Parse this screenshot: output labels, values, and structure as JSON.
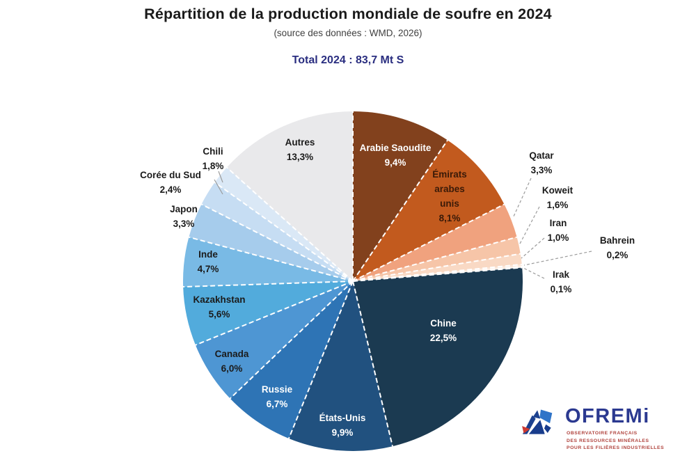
{
  "title": "Répartition de la production mondiale de soufre en 2024",
  "subtitle": "(source des données : WMD, 2026)",
  "total_label": "Total 2024 : 83,7 Mt S",
  "colors": {
    "title_text": "#1a1a1a",
    "subtitle_text": "#3f3f3f",
    "total_text": "#2a2e80",
    "slice_divider": "#ffffff",
    "leader_line": "#9b9b9b",
    "dark_label_text": "#1b1b1b",
    "light_label_text": "#ffffff"
  },
  "chart_data": {
    "type": "pie",
    "title": "Répartition de la production mondiale de soufre en 2024",
    "subtitle": "(source des données : WMD, 2026)",
    "total": "Total 2024 : 83,7 Mt S",
    "unit": "%",
    "start_angle_deg": 90,
    "direction": "clockwise",
    "legend": "none",
    "slices": [
      {
        "label": "Arabie Saoudite",
        "value": 9.4,
        "display": "9,4%",
        "color": "#82411d",
        "text_color": "#ffffff"
      },
      {
        "label": "Émirats arabes unis",
        "value": 8.1,
        "display": "8,1%",
        "color": "#c25a1e",
        "text_color": "#3a1a08"
      },
      {
        "label": "Qatar",
        "value": 3.3,
        "display": "3,3%",
        "color": "#f0a27e",
        "text_color": "#1b1b1b"
      },
      {
        "label": "Koweit",
        "value": 1.6,
        "display": "1,6%",
        "color": "#f6c5a8",
        "text_color": "#1b1b1b"
      },
      {
        "label": "Iran",
        "value": 1.0,
        "display": "1,0%",
        "color": "#f9d9c4",
        "text_color": "#1b1b1b"
      },
      {
        "label": "Bahrein",
        "value": 0.2,
        "display": "0,2%",
        "color": "#fbe8db",
        "text_color": "#1b1b1b"
      },
      {
        "label": "Irak",
        "value": 0.1,
        "display": "0,1%",
        "color": "#fdf3ec",
        "text_color": "#1b1b1b"
      },
      {
        "label": "Chine",
        "value": 22.5,
        "display": "22,5%",
        "color": "#1b3a51",
        "text_color": "#ffffff"
      },
      {
        "label": "États-Unis",
        "value": 9.9,
        "display": "9,9%",
        "color": "#21517f",
        "text_color": "#ffffff"
      },
      {
        "label": "Russie",
        "value": 6.7,
        "display": "6,7%",
        "color": "#2e74b5",
        "text_color": "#ffffff"
      },
      {
        "label": "Canada",
        "value": 6.0,
        "display": "6,0%",
        "color": "#4e96d3",
        "text_color": "#1b1b1b"
      },
      {
        "label": "Kazakhstan",
        "value": 5.6,
        "display": "5,6%",
        "color": "#52abdc",
        "text_color": "#1b1b1b"
      },
      {
        "label": "Inde",
        "value": 4.7,
        "display": "4,7%",
        "color": "#79bae5",
        "text_color": "#1b1b1b"
      },
      {
        "label": "Japon",
        "value": 3.3,
        "display": "3,3%",
        "color": "#a6ccec",
        "text_color": "#1b1b1b"
      },
      {
        "label": "Corée du Sud",
        "value": 2.4,
        "display": "2,4%",
        "color": "#c6ddf3",
        "text_color": "#1b1b1b"
      },
      {
        "label": "Chili",
        "value": 1.8,
        "display": "1,8%",
        "color": "#dae8f6",
        "text_color": "#1b1b1b"
      },
      {
        "label": "Autres",
        "value": 13.3,
        "display": "13,3%",
        "color": "#e9e9eb",
        "text_color": "#1b1b1b"
      }
    ]
  },
  "logo": {
    "name": "OFREMi",
    "tagline_lines": [
      "OBSERVATOIRE FRANÇAIS",
      "DES RESSOURCES MINÉRALES",
      "POUR LES FILIÈRES INDUSTRIELLES"
    ],
    "brand_blue": "#2b3990",
    "brand_red": "#ce3a31"
  }
}
